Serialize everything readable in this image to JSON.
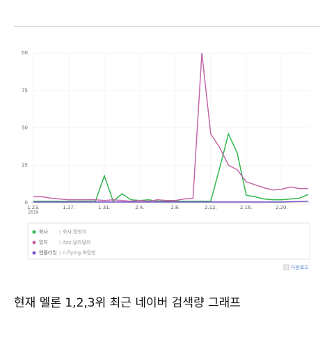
{
  "chart_data": {
    "type": "line",
    "categories": [
      "1.23.",
      null,
      null,
      null,
      "1.27.",
      null,
      null,
      null,
      "1.31.",
      null,
      null,
      null,
      "2.4.",
      null,
      null,
      null,
      "2.8.",
      null,
      null,
      null,
      "2.12.",
      null,
      null,
      null,
      "2.16.",
      null,
      null,
      null,
      "2.20.",
      null,
      null,
      null
    ],
    "year_label": "2019",
    "ylim": [
      0,
      100
    ],
    "yticks": [
      {
        "value": 100,
        "label": "00"
      },
      75,
      50,
      25,
      0
    ],
    "grid": true,
    "series": [
      {
        "name": "화사",
        "detail": "화사,멍청이",
        "color": "#2db84d",
        "values": [
          1,
          1,
          1,
          1,
          1,
          1,
          1,
          1,
          18,
          1,
          6,
          2,
          1.5,
          2,
          1,
          1,
          1,
          1,
          1,
          1,
          1,
          23,
          46,
          33,
          5,
          4,
          2.5,
          2,
          2,
          2.5,
          3,
          5.5
        ]
      },
      {
        "name": "있지",
        "detail": "itzy,달라달라",
        "color": "#c466a8",
        "values": [
          4,
          4,
          3,
          2.5,
          2,
          2,
          2,
          2,
          1.5,
          2,
          1.5,
          1,
          1.5,
          1,
          2,
          1.5,
          1.5,
          2.5,
          3,
          100,
          46,
          37,
          25,
          22,
          14,
          12,
          10,
          8.5,
          9,
          10.5,
          9.5,
          9.5
        ]
      },
      {
        "name": "엔플라잉",
        "detail": "n.flying,옥탑방",
        "color": "#7a55c8",
        "values": [
          0.5,
          0.5,
          0.5,
          0.5,
          0.5,
          0.5,
          0.5,
          0.5,
          0.5,
          0.5,
          0.5,
          0.5,
          0.5,
          0.5,
          0.5,
          0.5,
          0.5,
          0.5,
          0.5,
          0.5,
          0.5,
          0.5,
          0.5,
          0.5,
          0.5,
          0.5,
          0.5,
          0.5,
          0.5,
          0.7,
          0.8,
          1
        ]
      }
    ],
    "download_label": "다운로드"
  },
  "caption": "현재 멜론 1,2,3위 최근 네이버 검색량 그래프"
}
